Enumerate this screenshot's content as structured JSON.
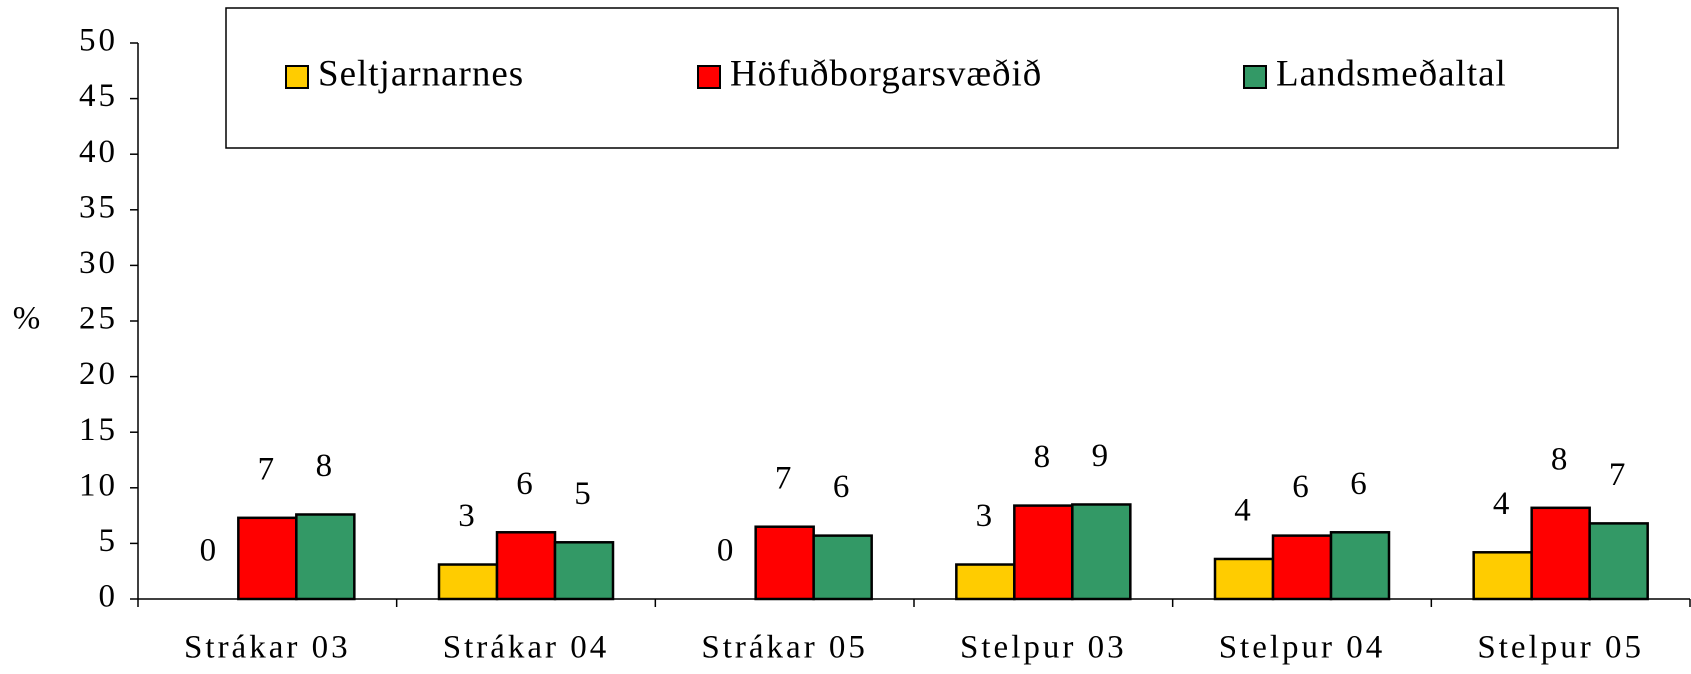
{
  "chart_data": {
    "type": "bar",
    "y_label": "%",
    "categories": [
      "Strákar 03",
      "Strákar 04",
      "Strákar 05",
      "Stelpur 03",
      "Stelpur 04",
      "Stelpur 05"
    ],
    "series": [
      {
        "name": "Seltjarnarnes",
        "color": "#ffcc00",
        "values": [
          0,
          3.1,
          0,
          3.1,
          3.6,
          4.2
        ],
        "value_labels": [
          "0",
          "3",
          "0",
          "3",
          "4",
          "4"
        ]
      },
      {
        "name": "Höfuðborgarsvæðið",
        "color": "#ff0000",
        "values": [
          7.3,
          6.0,
          6.5,
          8.4,
          5.7,
          8.2
        ],
        "value_labels": [
          "7",
          "6",
          "7",
          "8",
          "6",
          "8"
        ]
      },
      {
        "name": "Landsmeðaltal",
        "color": "#339966",
        "values": [
          7.6,
          5.1,
          5.7,
          8.5,
          6.0,
          6.8
        ],
        "value_labels": [
          "8",
          "5",
          "6",
          "9",
          "6",
          "7"
        ]
      }
    ],
    "ylim": [
      0,
      50
    ],
    "yticks": [
      0,
      5,
      10,
      15,
      20,
      25,
      30,
      35,
      40,
      45,
      50
    ],
    "grid": false
  }
}
